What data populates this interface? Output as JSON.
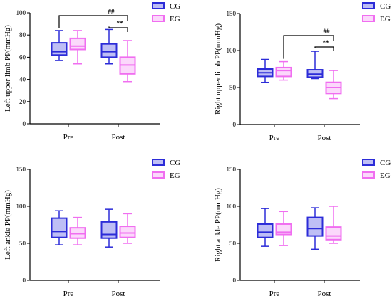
{
  "colors": {
    "CG": "#2c2cd8",
    "EG": "#f06ef0",
    "CG_fill": "#6e6ee8",
    "EG_fill": "#f7a8f7"
  },
  "chart_data": [
    {
      "type": "box",
      "ylabel": "Left upper limb PP(mmHg)",
      "yticks": [
        "0",
        "20",
        "40",
        "60",
        "80",
        "100"
      ],
      "ylim": [
        0,
        100
      ],
      "categories": [
        "Pre",
        "Post"
      ],
      "legend": [
        "CG",
        "EG"
      ],
      "series": [
        {
          "name": "CG",
          "boxes": [
            {
              "min": 57,
              "q1": 62,
              "median": 65,
              "q3": 73,
              "max": 84
            },
            {
              "min": 54,
              "q1": 60,
              "median": 65,
              "q3": 72,
              "max": 85
            }
          ]
        },
        {
          "name": "EG",
          "boxes": [
            {
              "min": 54,
              "q1": 67,
              "median": 70,
              "q3": 77,
              "max": 84
            },
            {
              "min": 38,
              "q1": 45,
              "median": 53,
              "q3": 60,
              "max": 75
            }
          ]
        }
      ],
      "annotations": [
        "##",
        "**"
      ]
    },
    {
      "type": "box",
      "ylabel": "Right upper limb PP(mmHg)",
      "yticks": [
        "0",
        "50",
        "100",
        "150"
      ],
      "ylim": [
        0,
        150
      ],
      "categories": [
        "Pre",
        "Post"
      ],
      "legend": [
        "CG",
        "EG"
      ],
      "series": [
        {
          "name": "CG",
          "boxes": [
            {
              "min": 57,
              "q1": 65,
              "median": 70,
              "q3": 75,
              "max": 88
            },
            {
              "min": 62,
              "q1": 64,
              "median": 68,
              "q3": 74,
              "max": 99
            }
          ]
        },
        {
          "name": "EG",
          "boxes": [
            {
              "min": 60,
              "q1": 65,
              "median": 73,
              "q3": 77,
              "max": 85
            },
            {
              "min": 35,
              "q1": 42,
              "median": 50,
              "q3": 57,
              "max": 73
            }
          ]
        }
      ],
      "annotations": [
        "##",
        "**"
      ]
    },
    {
      "type": "box",
      "ylabel": "Left ankle PP(mmHg)",
      "yticks": [
        "0",
        "50",
        "100",
        "150"
      ],
      "ylim": [
        0,
        150
      ],
      "categories": [
        "Pre",
        "Post"
      ],
      "legend": [
        "CG",
        "EG"
      ],
      "series": [
        {
          "name": "CG",
          "boxes": [
            {
              "min": 48,
              "q1": 58,
              "median": 66,
              "q3": 84,
              "max": 94
            },
            {
              "min": 45,
              "q1": 57,
              "median": 62,
              "q3": 79,
              "max": 96
            }
          ]
        },
        {
          "name": "EG",
          "boxes": [
            {
              "min": 48,
              "q1": 57,
              "median": 63,
              "q3": 71,
              "max": 85
            },
            {
              "min": 50,
              "q1": 58,
              "median": 64,
              "q3": 73,
              "max": 90
            }
          ]
        }
      ],
      "annotations": []
    },
    {
      "type": "box",
      "ylabel": "Right ankle PP(mmHg)",
      "yticks": [
        "0",
        "50",
        "100",
        "150"
      ],
      "ylim": [
        0,
        150
      ],
      "categories": [
        "Pre",
        "Post"
      ],
      "legend": [
        "CG",
        "EG"
      ],
      "series": [
        {
          "name": "CG",
          "boxes": [
            {
              "min": 46,
              "q1": 58,
              "median": 65,
              "q3": 76,
              "max": 97
            },
            {
              "min": 42,
              "q1": 60,
              "median": 70,
              "q3": 85,
              "max": 98
            }
          ]
        },
        {
          "name": "EG",
          "boxes": [
            {
              "min": 47,
              "q1": 62,
              "median": 65,
              "q3": 76,
              "max": 93
            },
            {
              "min": 50,
              "q1": 55,
              "median": 60,
              "q3": 72,
              "max": 100
            }
          ]
        }
      ],
      "annotations": []
    }
  ]
}
